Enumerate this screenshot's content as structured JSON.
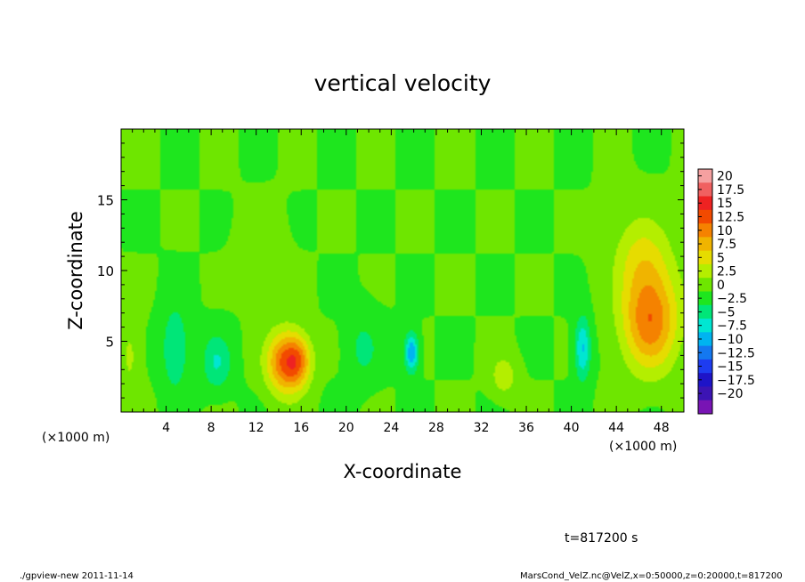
{
  "chart_data": {
    "type": "heatmap",
    "title": "vertical velocity",
    "xlabel": "X-coordinate",
    "ylabel": "Z-coordinate",
    "x_unit_left": "(×1000 m)",
    "x_unit_right": "(×1000 m)",
    "xlim": [
      0,
      50
    ],
    "ylim": [
      0,
      20
    ],
    "xticks": [
      4,
      8,
      12,
      16,
      20,
      24,
      28,
      32,
      36,
      40,
      44,
      48
    ],
    "xtick_labels": [
      "4",
      "8",
      "12",
      "16",
      "20",
      "24",
      "28",
      "32",
      "36",
      "40",
      "44",
      "48"
    ],
    "yticks": [
      5,
      10,
      15
    ],
    "ytick_labels": [
      "5",
      "10",
      "15"
    ],
    "colorbar": {
      "labels": [
        "20",
        "17.5",
        "15",
        "12.5",
        "10",
        "7.5",
        "5",
        "2.5",
        "0",
        "−2.5",
        "−5",
        "−7.5",
        "−10",
        "−12.5",
        "−15",
        "−17.5",
        "−20"
      ],
      "colors": [
        "#f5a0a0",
        "#f06060",
        "#ee2222",
        "#f24a00",
        "#f58200",
        "#f0b400",
        "#e6dc00",
        "#b4ee00",
        "#6ee600",
        "#1ee61e",
        "#00e678",
        "#00e6d2",
        "#00b4f0",
        "#1478f0",
        "#1e3cf0",
        "#1e14c8",
        "#3c14b4",
        "#7814b4"
      ]
    },
    "features": [
      {
        "x": 14.5,
        "z": 3.5,
        "sx": 1.6,
        "sz": 2.2,
        "v": 12
      },
      {
        "x": 15.8,
        "z": 3.6,
        "sx": 1.2,
        "sz": 1.8,
        "v": 8
      },
      {
        "x": 47.0,
        "z": 6.5,
        "sx": 2.5,
        "sz": 3.5,
        "v": 12
      },
      {
        "x": 46.3,
        "z": 11.0,
        "sx": 2.5,
        "sz": 3.0,
        "v": 5
      },
      {
        "x": 25.8,
        "z": 4.2,
        "sx": 0.6,
        "sz": 1.4,
        "v": -10
      },
      {
        "x": 41.0,
        "z": 4.5,
        "sx": 0.7,
        "sz": 2.2,
        "v": -8
      },
      {
        "x": 4.8,
        "z": 4.5,
        "sx": 1.2,
        "sz": 3.0,
        "v": -5
      },
      {
        "x": 8.5,
        "z": 3.5,
        "sx": 1.3,
        "sz": 2.0,
        "v": -5
      },
      {
        "x": 21.5,
        "z": 4.5,
        "sx": 1.5,
        "sz": 2.5,
        "v": -3
      },
      {
        "x": 34.0,
        "z": 2.5,
        "sx": 1.2,
        "sz": 1.5,
        "v": 4
      },
      {
        "x": 0.8,
        "z": 4.0,
        "sx": 1.0,
        "sz": 3.0,
        "v": 3
      },
      {
        "x": 12.5,
        "z": 11.0,
        "sx": 2.0,
        "sz": 3.0,
        "v": 1.2
      }
    ],
    "time_label": "t=817200 s"
  },
  "footer": {
    "left": "./gpview-new  2011-11-14",
    "right": "MarsCond_VelZ.nc@VelZ,x=0:50000,z=0:20000,t=817200"
  }
}
